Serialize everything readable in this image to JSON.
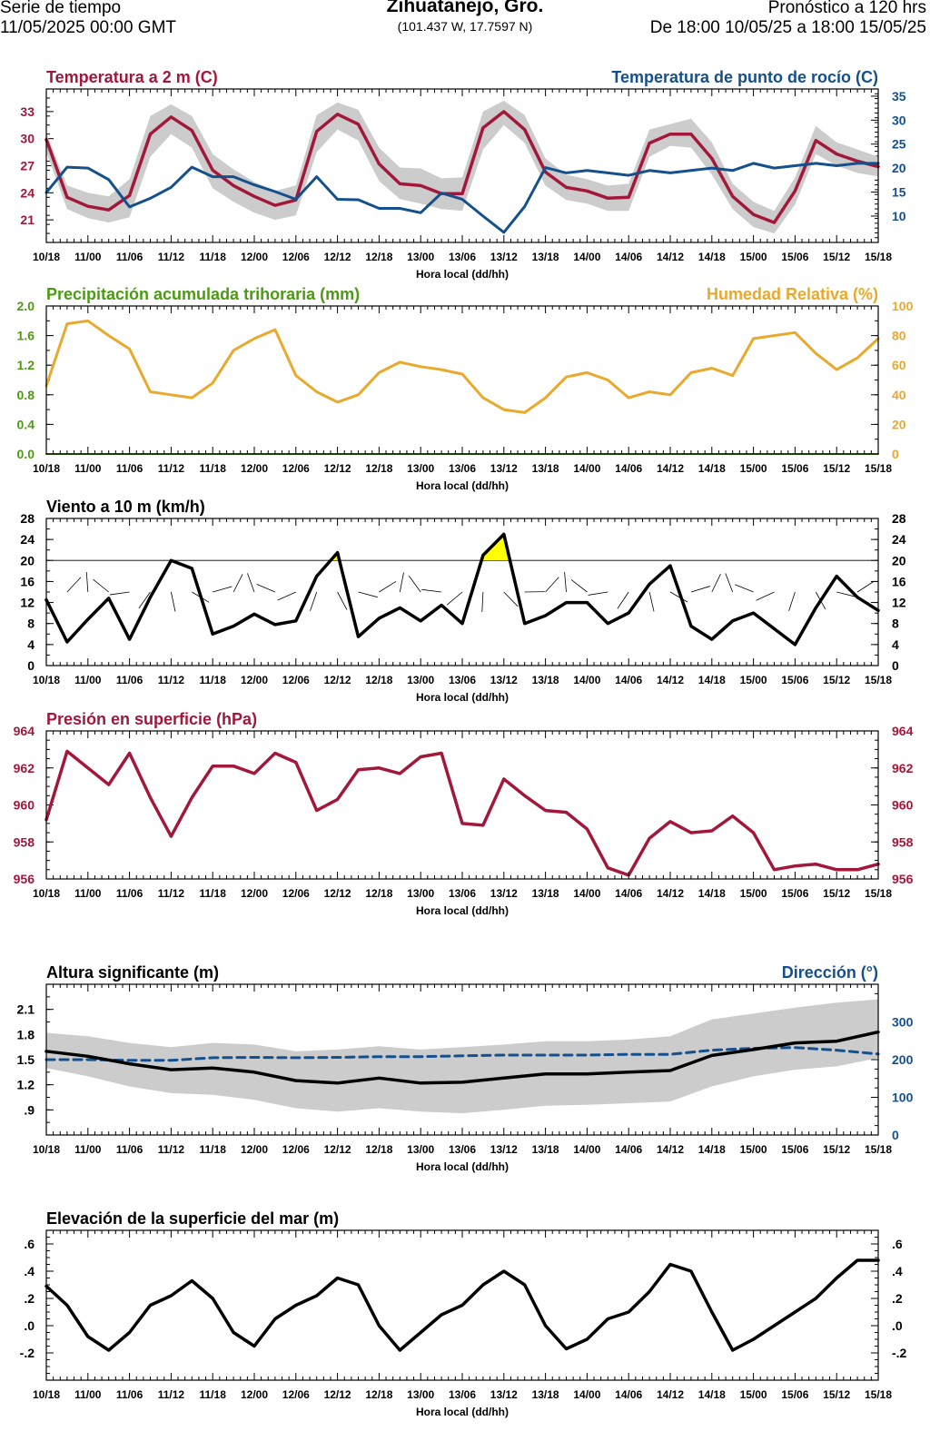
{
  "header": {
    "left_line1": "Serie de tiempo",
    "left_line2": "11/05/2025 00:00 GMT",
    "title": "Zihuatanejo, Gro.",
    "coords": "(101.437 W, 17.7597 N)",
    "right_line1": "Pronóstico a 120 hrs",
    "right_line2": "De 18:00 10/05/25 a 18:00 15/05/25"
  },
  "colors": {
    "temp": "#a3173a",
    "dew": "#14508c",
    "precip": "#4c9a12",
    "humidity": "#e8a92c",
    "wind": "#000000",
    "gust_fill": "#ffff00",
    "pressure": "#a3173a",
    "wave_dir": "#14508c",
    "band": "#cccccc"
  },
  "x_tick_labels": [
    "10/18",
    "11/00",
    "11/06",
    "11/12",
    "11/18",
    "12/00",
    "12/06",
    "12/12",
    "12/18",
    "13/00",
    "13/06",
    "13/12",
    "13/18",
    "14/00",
    "14/06",
    "14/12",
    "14/18",
    "15/00",
    "15/06",
    "15/12",
    "15/18"
  ],
  "x_axis_label": "Hora local (dd/hh)",
  "chart_data": [
    {
      "type": "line",
      "id": "temperature",
      "title_left": "Temperatura a 2 m (C)",
      "title_right": "Temperatura de punto de rocío (C)",
      "x_hours": [
        0,
        3,
        6,
        9,
        12,
        15,
        18,
        21,
        24,
        27,
        30,
        33,
        36,
        39,
        42,
        45,
        48,
        51,
        54,
        57,
        60,
        63,
        66,
        69,
        72,
        75,
        78,
        81,
        84,
        87,
        90,
        93,
        96,
        99,
        102,
        105,
        108,
        111,
        114,
        117,
        120
      ],
      "ylim_left": [
        18.5,
        35.5
      ],
      "yticks_left": [
        21,
        24,
        27,
        30,
        33
      ],
      "ylim_right": [
        4.5,
        36.5
      ],
      "yticks_right": [
        10,
        15,
        20,
        25,
        30,
        35
      ],
      "series": [
        {
          "name": "Temperatura a 2 m",
          "axis": "left",
          "values": [
            29.9,
            23.5,
            22.5,
            22.1,
            23.7,
            30.5,
            32.4,
            30.9,
            26.5,
            24.8,
            23.6,
            22.6,
            23.2,
            30.8,
            32.7,
            31.6,
            27.2,
            25.0,
            24.8,
            23.9,
            23.9,
            31.2,
            33.0,
            31.0,
            26.3,
            24.6,
            24.2,
            23.4,
            23.5,
            29.5,
            30.5,
            30.5,
            27.8,
            23.6,
            21.6,
            20.7,
            24.2,
            29.8,
            28.3,
            27.5,
            26.9
          ],
          "band_low": [
            28.5,
            22.2,
            21.2,
            20.7,
            21.3,
            28.0,
            30.5,
            29.0,
            24.5,
            23.0,
            21.8,
            21.0,
            21.5,
            28.5,
            31.0,
            29.8,
            25.3,
            23.3,
            22.8,
            22.2,
            22.0,
            28.8,
            31.5,
            29.5,
            24.8,
            23.2,
            22.8,
            22.0,
            22.0,
            28.0,
            29.2,
            29.0,
            26.0,
            22.2,
            20.2,
            19.5,
            22.7,
            28.3,
            27.0,
            26.2,
            25.8
          ],
          "band_high": [
            30.6,
            24.8,
            24.0,
            23.6,
            25.5,
            32.5,
            33.8,
            32.5,
            28.3,
            26.6,
            25.2,
            24.2,
            24.8,
            32.6,
            34.0,
            33.2,
            29.0,
            26.8,
            26.7,
            25.6,
            25.7,
            33.0,
            34.2,
            32.6,
            27.8,
            26.0,
            25.5,
            24.8,
            25.0,
            31.0,
            31.6,
            32.2,
            29.6,
            25.0,
            23.0,
            22.0,
            25.7,
            31.4,
            29.6,
            28.8,
            28.0
          ]
        },
        {
          "name": "Temperatura de punto de rocío",
          "axis": "right",
          "values": [
            14.9,
            20.2,
            20.0,
            17.6,
            11.9,
            13.7,
            16.0,
            20.2,
            18.2,
            18.2,
            16.5,
            15.1,
            13.5,
            18.2,
            13.5,
            13.4,
            11.6,
            11.6,
            10.7,
            14.8,
            13.5,
            10.0,
            6.6,
            12.0,
            20.1,
            19.0,
            19.5,
            19.0,
            18.5,
            19.5,
            19.0,
            19.5,
            20.0,
            19.5,
            21.0,
            20.0,
            20.5,
            21.0,
            20.5,
            21.0,
            21.0
          ]
        }
      ]
    },
    {
      "type": "line",
      "id": "precip_humidity",
      "title_left": "Precipitación acumulada trihoraria (mm)",
      "title_right": "Humedad Relativa (%)",
      "x_hours": [
        0,
        3,
        6,
        9,
        12,
        15,
        18,
        21,
        24,
        27,
        30,
        33,
        36,
        39,
        42,
        45,
        48,
        51,
        54,
        57,
        60,
        63,
        66,
        69,
        72,
        75,
        78,
        81,
        84,
        87,
        90,
        93,
        96,
        99,
        102,
        105,
        108,
        111,
        114,
        117,
        120
      ],
      "ylim_left": [
        0,
        2.0
      ],
      "yticks_left": [
        "0.0",
        "0.4",
        "0.8",
        "1.2",
        "1.6",
        "2.0"
      ],
      "ylim_right": [
        0,
        100
      ],
      "yticks_right": [
        0,
        20,
        40,
        60,
        80,
        100
      ],
      "series": [
        {
          "name": "Precipitación acumulada trihoraria",
          "axis": "left",
          "values": [
            0,
            0,
            0,
            0,
            0,
            0,
            0,
            0,
            0,
            0,
            0,
            0,
            0,
            0,
            0,
            0,
            0,
            0,
            0,
            0,
            0,
            0,
            0,
            0,
            0,
            0,
            0,
            0,
            0,
            0,
            0,
            0,
            0,
            0,
            0,
            0,
            0,
            0,
            0,
            0,
            0
          ]
        },
        {
          "name": "Humedad Relativa",
          "axis": "right",
          "values": [
            46,
            88,
            90,
            80,
            71,
            42,
            40,
            38,
            48,
            70,
            78,
            84,
            53,
            42,
            35,
            40,
            55,
            62,
            59,
            57,
            54,
            38,
            30,
            28,
            38,
            52,
            55,
            50,
            38,
            42,
            40,
            55,
            58,
            53,
            78,
            80,
            82,
            68,
            57,
            65,
            78
          ]
        }
      ]
    },
    {
      "type": "line",
      "id": "wind",
      "title_left": "Viento a 10 m (km/h)",
      "x_hours": [
        0,
        3,
        6,
        9,
        12,
        15,
        18,
        21,
        24,
        27,
        30,
        33,
        36,
        39,
        42,
        45,
        48,
        51,
        54,
        57,
        60,
        63,
        66,
        69,
        72,
        75,
        78,
        81,
        84,
        87,
        90,
        93,
        96,
        99,
        102,
        105,
        108,
        111,
        114,
        117,
        120
      ],
      "ylim": [
        0,
        28
      ],
      "yticks": [
        0,
        4,
        8,
        12,
        16,
        20,
        24,
        28
      ],
      "threshold": 20,
      "series": [
        {
          "name": "Viento a 10 m",
          "axis": "left",
          "values": [
            12.5,
            4.5,
            8.8,
            12.8,
            5.0,
            13.0,
            20.0,
            18.5,
            6.0,
            7.5,
            9.8,
            7.8,
            8.5,
            17.0,
            21.5,
            5.5,
            9.0,
            11.0,
            8.5,
            11.5,
            8.0,
            21.0,
            25.0,
            8.0,
            9.5,
            12.0,
            12.0,
            8.0,
            10.0,
            15.5,
            19.0,
            7.5,
            5.0,
            8.5,
            10.0,
            7.0,
            4.0,
            11.0,
            17.0,
            13.0,
            10.5
          ]
        }
      ]
    },
    {
      "type": "line",
      "id": "pressure",
      "title_left": "Presión en superficie (hPa)",
      "x_hours": [
        0,
        3,
        6,
        9,
        12,
        15,
        18,
        21,
        24,
        27,
        30,
        33,
        36,
        39,
        42,
        45,
        48,
        51,
        54,
        57,
        60,
        63,
        66,
        69,
        72,
        75,
        78,
        81,
        84,
        87,
        90,
        93,
        96,
        99,
        102,
        105,
        108,
        111,
        114,
        117,
        120
      ],
      "ylim": [
        956,
        964
      ],
      "yticks": [
        956,
        958,
        960,
        962,
        964
      ],
      "series": [
        {
          "name": "Presión en superficie",
          "axis": "left",
          "values": [
            959.2,
            962.9,
            962.0,
            961.1,
            962.8,
            960.4,
            958.3,
            960.4,
            962.1,
            962.1,
            961.7,
            962.8,
            962.3,
            959.7,
            960.3,
            961.9,
            962.0,
            961.7,
            962.6,
            962.8,
            959.0,
            958.9,
            961.4,
            960.5,
            959.7,
            959.6,
            958.7,
            956.6,
            956.2,
            958.2,
            959.1,
            958.5,
            958.6,
            959.4,
            958.5,
            956.5,
            956.7,
            956.8,
            956.5,
            956.5,
            956.8
          ]
        }
      ]
    },
    {
      "type": "line",
      "id": "wave_height",
      "title_left": "Altura significante (m)",
      "title_right": "Dirección (°)",
      "x_hours": [
        0,
        6,
        12,
        18,
        24,
        30,
        36,
        42,
        48,
        54,
        60,
        66,
        72,
        78,
        84,
        90,
        96,
        102,
        108,
        114,
        120
      ],
      "ylim_left": [
        0.6,
        2.4
      ],
      "yticks_left": [
        ".9",
        "1.2",
        "1.5",
        "1.8",
        "2.1"
      ],
      "ylim_right": [
        0,
        400
      ],
      "yticks_right": [
        0,
        100,
        200,
        300
      ],
      "series": [
        {
          "name": "Altura significante",
          "axis": "left",
          "values": [
            1.6,
            1.54,
            1.45,
            1.38,
            1.4,
            1.35,
            1.25,
            1.22,
            1.28,
            1.22,
            1.23,
            1.28,
            1.33,
            1.33,
            1.35,
            1.37,
            1.55,
            1.62,
            1.7,
            1.72,
            1.83
          ],
          "band_low": [
            1.4,
            1.3,
            1.18,
            1.1,
            1.08,
            1.02,
            0.92,
            0.88,
            0.92,
            0.88,
            0.86,
            0.9,
            0.95,
            0.96,
            0.98,
            1.0,
            1.18,
            1.3,
            1.38,
            1.42,
            1.52
          ],
          "band_high": [
            1.82,
            1.78,
            1.7,
            1.65,
            1.7,
            1.68,
            1.6,
            1.62,
            1.66,
            1.62,
            1.65,
            1.68,
            1.72,
            1.72,
            1.74,
            1.78,
            1.98,
            2.05,
            2.12,
            2.18,
            2.22
          ]
        },
        {
          "name": "Dirección",
          "axis": "right",
          "values": [
            200,
            200,
            198,
            198,
            205,
            206,
            205,
            206,
            208,
            208,
            210,
            212,
            212,
            212,
            214,
            214,
            225,
            230,
            232,
            225,
            215
          ]
        }
      ]
    },
    {
      "type": "line",
      "id": "sea_level",
      "title_left": "Elevación de la superficie del mar (m)",
      "x_hours": [
        0,
        3,
        6,
        9,
        12,
        15,
        18,
        21,
        24,
        27,
        30,
        33,
        36,
        39,
        42,
        45,
        48,
        51,
        54,
        57,
        60,
        63,
        66,
        69,
        72,
        75,
        78,
        81,
        84,
        87,
        90,
        93,
        96,
        99,
        102,
        105,
        108,
        111,
        114,
        117,
        120
      ],
      "ylim": [
        -0.4,
        0.7
      ],
      "yticks": [
        "-.2",
        ".0",
        ".2",
        ".4",
        ".6"
      ],
      "series": [
        {
          "name": "Elevación de la superficie del mar",
          "axis": "left",
          "values": [
            0.29,
            0.15,
            -0.08,
            -0.18,
            -0.05,
            0.15,
            0.22,
            0.33,
            0.2,
            -0.05,
            -0.15,
            0.05,
            0.15,
            0.22,
            0.35,
            0.3,
            0.0,
            -0.18,
            -0.05,
            0.08,
            0.15,
            0.3,
            0.4,
            0.3,
            0.0,
            -0.17,
            -0.1,
            0.05,
            0.1,
            0.25,
            0.45,
            0.4,
            0.1,
            -0.18,
            -0.1,
            0.0,
            0.1,
            0.2,
            0.35,
            0.48,
            0.48
          ]
        }
      ]
    }
  ]
}
